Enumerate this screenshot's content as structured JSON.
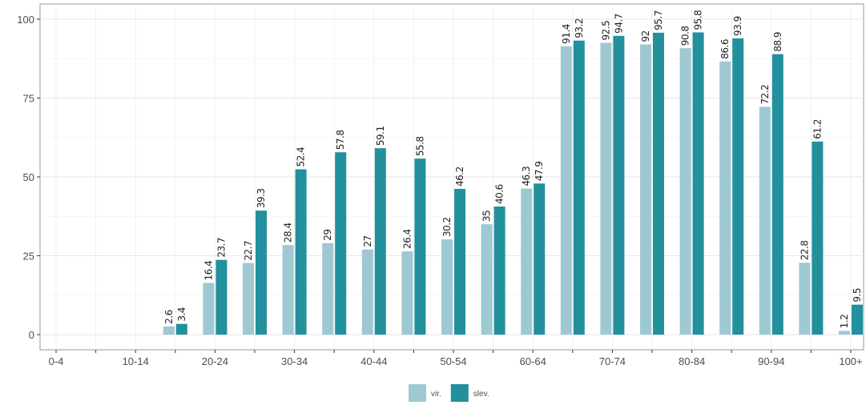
{
  "chart_data": {
    "type": "bar",
    "categories": [
      "0-4",
      null,
      "10-14",
      null,
      "20-24",
      null,
      "30-34",
      null,
      "40-44",
      null,
      "50-54",
      null,
      "60-64",
      null,
      "70-74",
      null,
      "80-84",
      null,
      "90-94",
      null,
      "100+"
    ],
    "series": [
      {
        "name": "vir.",
        "color": "#9ec9d3",
        "values": [
          null,
          null,
          null,
          2.6,
          16.4,
          22.7,
          28.4,
          29,
          27,
          26.4,
          30.2,
          35,
          46.3,
          91.4,
          92.5,
          92,
          90.8,
          86.6,
          72.2,
          22.8,
          1.2
        ]
      },
      {
        "name": "slev.",
        "color": "#22909d",
        "values": [
          null,
          null,
          null,
          3.4,
          23.7,
          39.3,
          52.4,
          57.8,
          59.1,
          55.8,
          46.2,
          40.6,
          47.9,
          93.2,
          94.7,
          95.7,
          95.8,
          93.9,
          88.9,
          61.2,
          9.5
        ]
      }
    ],
    "ylim": [
      -4.8,
      104.8
    ],
    "yticks": [
      0,
      25,
      50,
      75,
      100
    ],
    "grid": true,
    "legend": "bottom"
  }
}
